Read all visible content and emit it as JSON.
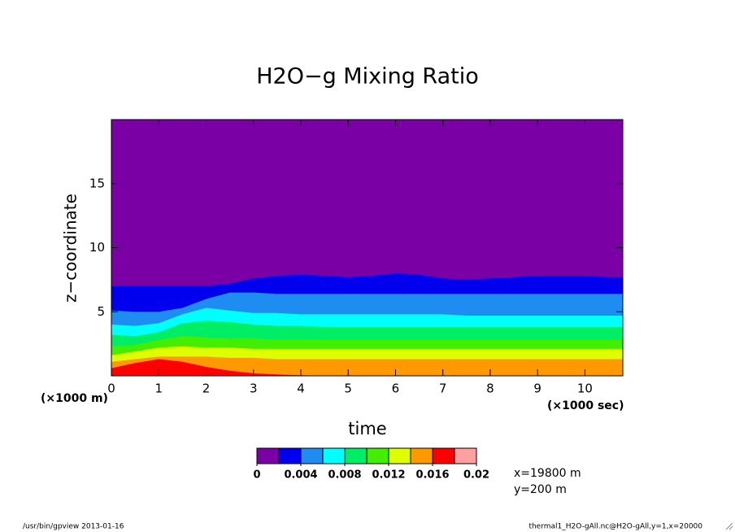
{
  "chart_data": {
    "type": "contour",
    "title": "H2O−g Mixing Ratio",
    "xlabel": "time",
    "xunit": "(×1000 sec)",
    "ylabel": "z−coordinate",
    "yunit": "(×1000 m)",
    "xlim": [
      0,
      10.8
    ],
    "ylim": [
      0,
      20
    ],
    "xticks": [
      0,
      1,
      2,
      3,
      4,
      5,
      6,
      7,
      8,
      9,
      10
    ],
    "yticks": [
      5,
      10,
      15
    ],
    "x": [
      0,
      0.5,
      1,
      1.5,
      2,
      2.5,
      3,
      3.5,
      4,
      4.5,
      5,
      5.5,
      6,
      6.5,
      7,
      7.5,
      8,
      8.5,
      9,
      9.5,
      10,
      10.5,
      10.8
    ],
    "levels": [
      0,
      0.002,
      0.004,
      0.006,
      0.008,
      0.01,
      0.012,
      0.014,
      0.016,
      0.018,
      0.02
    ],
    "level_ticks": [
      0,
      0.004,
      0.008,
      0.012,
      0.016,
      0.02
    ],
    "colors": [
      "#7a00a6",
      "#0000ee",
      "#1e8cf0",
      "#00ffff",
      "#00ee66",
      "#44ee00",
      "#ddff00",
      "#ff9900",
      "#ff0000",
      "#ffa0a0"
    ],
    "contours": [
      {
        "level": 0.002,
        "values": [
          7.0,
          7.0,
          7.0,
          7.0,
          7.0,
          7.2,
          7.6,
          7.8,
          7.9,
          7.8,
          7.7,
          7.8,
          8.0,
          7.9,
          7.6,
          7.5,
          7.6,
          7.7,
          7.8,
          7.8,
          7.8,
          7.7,
          7.7
        ]
      },
      {
        "level": 0.004,
        "values": [
          5.1,
          5.0,
          5.0,
          5.3,
          6.0,
          6.5,
          6.5,
          6.4,
          6.4,
          6.4,
          6.4,
          6.4,
          6.4,
          6.4,
          6.4,
          6.4,
          6.4,
          6.4,
          6.4,
          6.4,
          6.4,
          6.4,
          6.4
        ]
      },
      {
        "level": 0.006,
        "values": [
          4.0,
          3.9,
          4.1,
          4.8,
          5.3,
          5.1,
          4.9,
          4.9,
          4.8,
          4.8,
          4.8,
          4.8,
          4.8,
          4.8,
          4.8,
          4.7,
          4.7,
          4.7,
          4.7,
          4.7,
          4.7,
          4.7,
          4.7
        ]
      },
      {
        "level": 0.008,
        "values": [
          3.2,
          3.1,
          3.4,
          4.1,
          4.3,
          4.2,
          4.0,
          3.9,
          3.9,
          3.8,
          3.8,
          3.8,
          3.8,
          3.8,
          3.8,
          3.8,
          3.8,
          3.8,
          3.8,
          3.8,
          3.8,
          3.8,
          3.8
        ]
      },
      {
        "level": 0.01,
        "values": [
          2.3,
          2.4,
          2.8,
          3.1,
          3.0,
          2.9,
          2.9,
          2.8,
          2.8,
          2.8,
          2.8,
          2.8,
          2.8,
          2.8,
          2.8,
          2.8,
          2.8,
          2.8,
          2.8,
          2.8,
          2.8,
          2.8,
          2.8
        ]
      },
      {
        "level": 0.012,
        "values": [
          1.6,
          1.9,
          2.2,
          2.3,
          2.2,
          2.2,
          2.1,
          2.1,
          2.1,
          2.1,
          2.1,
          2.1,
          2.1,
          2.1,
          2.1,
          2.1,
          2.1,
          2.1,
          2.1,
          2.1,
          2.1,
          2.1,
          2.1
        ]
      },
      {
        "level": 0.014,
        "values": [
          1.1,
          1.3,
          1.5,
          1.5,
          1.5,
          1.4,
          1.4,
          1.3,
          1.3,
          1.3,
          1.3,
          1.3,
          1.3,
          1.3,
          1.3,
          1.3,
          1.3,
          1.3,
          1.3,
          1.3,
          1.3,
          1.3,
          1.3
        ]
      },
      {
        "level": 0.016,
        "values": [
          0.6,
          1.0,
          1.3,
          1.1,
          0.7,
          0.4,
          0.2,
          0.1,
          0.05,
          0,
          0,
          0,
          0,
          0,
          0,
          0,
          0,
          0,
          0,
          0,
          0,
          0,
          0
        ]
      }
    ],
    "annotations": [
      "x=19800 m",
      "y=200 m"
    ],
    "footer_left": "/usr/bin/gpview  2013-01-16",
    "footer_right": "thermal1_H2O-gAll.nc@H2O-gAll,y=1,x=20000"
  }
}
